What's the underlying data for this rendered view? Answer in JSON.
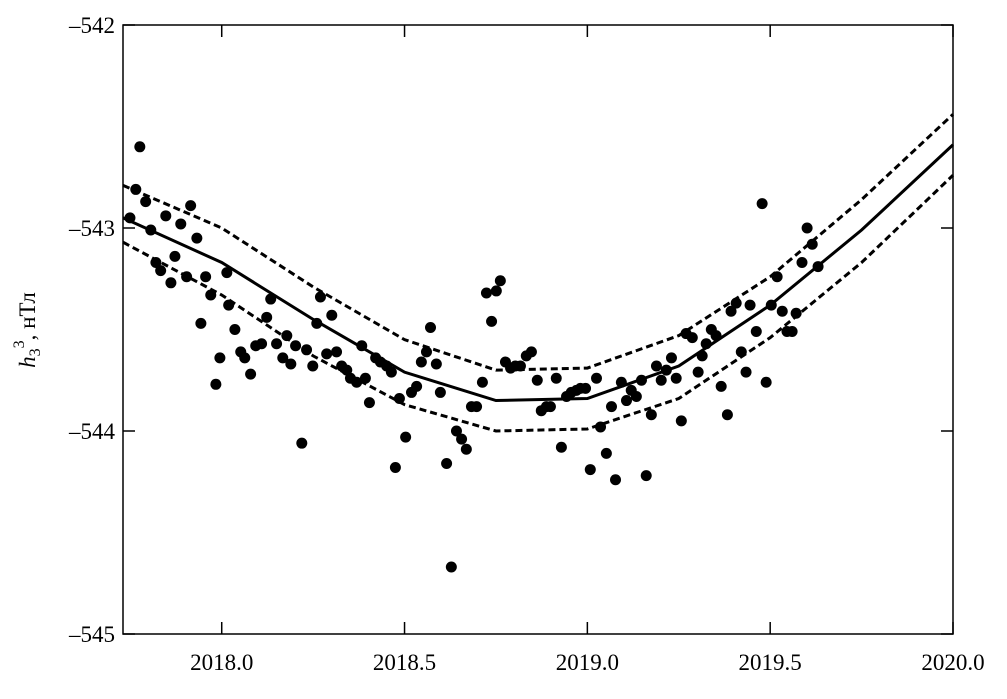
{
  "chart_data": {
    "type": "scatter",
    "ylabel": {
      "symbol": "h",
      "sub": "3",
      "sup": "3",
      "unit": ", нТл"
    },
    "xlim": [
      2017.73,
      2020.0
    ],
    "ylim": [
      -545,
      -542
    ],
    "xticks": [
      {
        "value": 2018,
        "label": "2018.0"
      },
      {
        "value": 2018.5,
        "label": "2018.5"
      },
      {
        "value": 2019,
        "label": "2019.0"
      },
      {
        "value": 2019.5,
        "label": "2019.5"
      },
      {
        "value": 2020,
        "label": "2020.0"
      }
    ],
    "yticks": [
      {
        "value": -545,
        "label": "–545"
      },
      {
        "value": -544,
        "label": "–544"
      },
      {
        "value": -543,
        "label": "–543"
      },
      {
        "value": -542,
        "label": "–542"
      }
    ],
    "color": "#000000",
    "x": [
      2017.749,
      2017.765,
      2017.776,
      2017.792,
      2017.806,
      2017.82,
      2017.833,
      2017.847,
      2017.861,
      2017.872,
      2017.888,
      2017.904,
      2017.915,
      2017.932,
      2017.943,
      2017.956,
      2017.97,
      2017.984,
      2017.995,
      2018.014,
      2018.019,
      2018.036,
      2018.052,
      2018.063,
      2018.079,
      2018.093,
      2018.109,
      2018.123,
      2018.134,
      2018.15,
      2018.167,
      2018.178,
      2018.189,
      2018.202,
      2018.219,
      2018.232,
      2018.249,
      2018.26,
      2018.27,
      2018.287,
      2018.301,
      2018.314,
      2018.328,
      2018.342,
      2018.352,
      2018.369,
      2018.383,
      2018.393,
      2018.404,
      2018.421,
      2018.434,
      2018.451,
      2018.464,
      2018.475,
      2018.486,
      2018.503,
      2018.519,
      2018.533,
      2018.546,
      2018.56,
      2018.571,
      2018.587,
      2018.598,
      2018.615,
      2018.628,
      2018.642,
      2018.656,
      2018.669,
      2018.683,
      2018.697,
      2018.713,
      2018.724,
      2018.738,
      2018.751,
      2018.762,
      2018.776,
      2018.79,
      2018.803,
      2018.817,
      2018.833,
      2018.847,
      2018.863,
      2018.874,
      2018.888,
      2018.899,
      2018.915,
      2018.929,
      2018.943,
      2018.956,
      2018.97,
      2018.981,
      2018.995,
      2019.008,
      2019.025,
      2019.036,
      2019.052,
      2019.066,
      2019.077,
      2019.093,
      2019.107,
      2019.12,
      2019.134,
      2019.148,
      2019.161,
      2019.175,
      2019.189,
      2019.202,
      2019.216,
      2019.23,
      2019.243,
      2019.257,
      2019.27,
      2019.287,
      2019.303,
      2019.314,
      2019.325,
      2019.339,
      2019.352,
      2019.366,
      2019.383,
      2019.393,
      2019.407,
      2019.421,
      2019.434,
      2019.445,
      2019.462,
      2019.478,
      2019.489,
      2019.503,
      2019.519,
      2019.533,
      2019.546,
      2019.56,
      2019.571,
      2019.587,
      2019.601,
      2019.615,
      2019.631
    ],
    "values": [
      -542.95,
      -542.81,
      -542.6,
      -542.87,
      -543.01,
      -543.17,
      -543.21,
      -542.94,
      -543.27,
      -543.14,
      -542.98,
      -543.24,
      -542.89,
      -543.05,
      -543.47,
      -543.24,
      -543.33,
      -543.77,
      -543.64,
      -543.22,
      -543.38,
      -543.5,
      -543.61,
      -543.64,
      -543.72,
      -543.58,
      -543.57,
      -543.44,
      -543.35,
      -543.57,
      -543.64,
      -543.53,
      -543.67,
      -543.58,
      -544.06,
      -543.6,
      -543.68,
      -543.47,
      -543.34,
      -543.62,
      -543.43,
      -543.61,
      -543.68,
      -543.7,
      -543.74,
      -543.76,
      -543.58,
      -543.74,
      -543.86,
      -543.64,
      -543.66,
      -543.68,
      -543.71,
      -544.18,
      -543.84,
      -544.03,
      -543.81,
      -543.78,
      -543.66,
      -543.61,
      -543.49,
      -543.67,
      -543.81,
      -544.16,
      -544.67,
      -544.0,
      -544.04,
      -544.09,
      -543.88,
      -543.88,
      -543.76,
      -543.32,
      -543.46,
      -543.31,
      -543.26,
      -543.66,
      -543.69,
      -543.68,
      -543.68,
      -543.63,
      -543.61,
      -543.75,
      -543.9,
      -543.88,
      -543.88,
      -543.74,
      -544.08,
      -543.83,
      -543.81,
      -543.8,
      -543.79,
      -543.79,
      -544.19,
      -543.74,
      -543.98,
      -544.11,
      -543.88,
      -544.24,
      -543.76,
      -543.85,
      -543.8,
      -543.83,
      -543.75,
      -544.22,
      -543.92,
      -543.68,
      -543.75,
      -543.7,
      -543.64,
      -543.74,
      -543.95,
      -543.52,
      -543.54,
      -543.71,
      -543.63,
      -543.57,
      -543.5,
      -543.53,
      -543.78,
      -543.92,
      -543.41,
      -543.37,
      -543.61,
      -543.71,
      -543.38,
      -543.51,
      -542.88,
      -543.76,
      -543.38,
      -543.24,
      -543.41,
      -543.51,
      -543.51,
      -543.42,
      -543.17,
      -543.0,
      -543.08,
      -543.19
    ],
    "lines": [
      {
        "style": "solid",
        "x": [
          2017.73,
          2018.0,
          2018.25,
          2018.5,
          2018.75,
          2019.0,
          2019.25,
          2019.5,
          2019.75,
          2020.0
        ],
        "values": [
          -542.95,
          -543.17,
          -543.45,
          -543.71,
          -543.85,
          -543.84,
          -543.68,
          -543.38,
          -543.01,
          -542.59
        ]
      },
      {
        "style": "dashed",
        "x": [
          2017.73,
          2018.0,
          2018.25,
          2018.5,
          2018.75,
          2019.0,
          2019.25,
          2019.5,
          2019.75,
          2020.0
        ],
        "values": [
          -542.79,
          -543.0,
          -543.29,
          -543.55,
          -543.7,
          -543.69,
          -543.53,
          -543.24,
          -542.86,
          -542.44
        ]
      },
      {
        "style": "dashed",
        "x": [
          2017.73,
          2018.0,
          2018.25,
          2018.5,
          2018.75,
          2019.0,
          2019.25,
          2019.5,
          2019.75,
          2020.0
        ],
        "values": [
          -543.07,
          -543.33,
          -543.63,
          -543.87,
          -544.0,
          -543.99,
          -543.84,
          -543.54,
          -543.17,
          -542.74
        ]
      }
    ]
  }
}
